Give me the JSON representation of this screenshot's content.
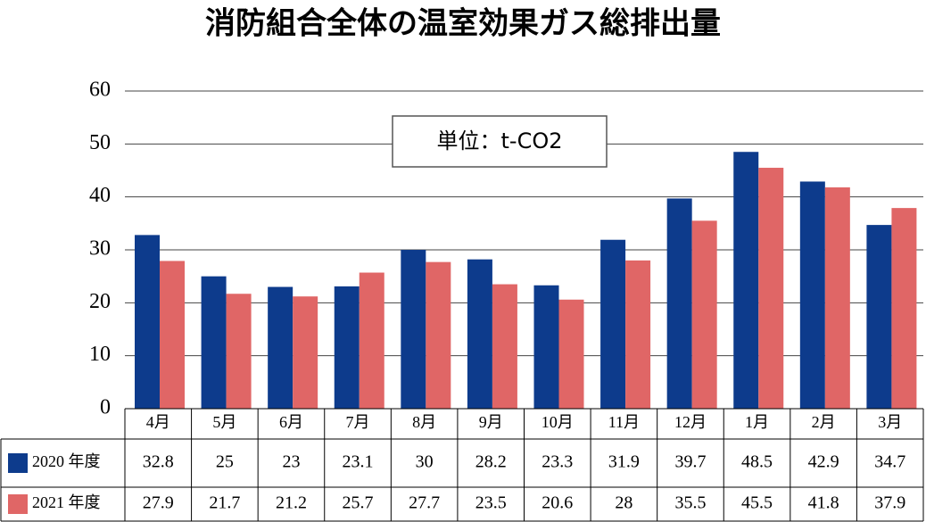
{
  "chart_data": {
    "type": "bar",
    "title": "消防組合全体の温室効果ガス総排出量",
    "unit_label": "単位：t-CO2",
    "categories": [
      "4月",
      "5月",
      "6月",
      "7月",
      "8月",
      "9月",
      "10月",
      "11月",
      "12月",
      "1月",
      "2月",
      "3月"
    ],
    "series": [
      {
        "name": "2020 年度",
        "color": "#0d3b8c",
        "values": [
          32.8,
          25,
          23,
          23.1,
          30,
          28.2,
          23.3,
          31.9,
          39.7,
          48.5,
          42.9,
          34.7
        ]
      },
      {
        "name": "2021 年度",
        "color": "#e06666",
        "values": [
          27.9,
          21.7,
          21.2,
          25.7,
          27.7,
          23.5,
          20.6,
          28,
          35.5,
          45.5,
          41.8,
          37.9
        ]
      }
    ],
    "ylim": [
      0,
      60
    ],
    "yticks": [
      0,
      10,
      20,
      30,
      40,
      50,
      60
    ],
    "grid": true
  }
}
